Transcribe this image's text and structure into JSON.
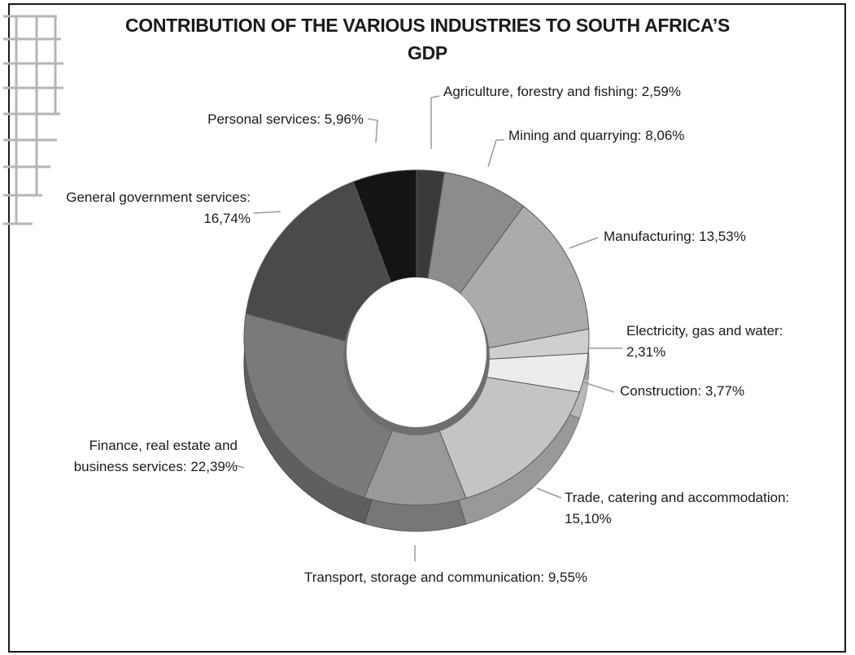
{
  "chart_data": {
    "type": "pie",
    "style": "3d-donut",
    "title_line1": "CONTRIBUTION OF THE VARIOUS INDUSTRIES TO SOUTH AFRICA’S",
    "title_line2": "GDP",
    "unit": "%",
    "slices": [
      {
        "label_lines": [
          "Agriculture, forestry and fishing: 2,59%"
        ],
        "value": 2.59,
        "color": "#3a3a3a"
      },
      {
        "label_lines": [
          "Mining and quarrying: 8,06%"
        ],
        "value": 8.06,
        "color": "#8c8c8c"
      },
      {
        "label_lines": [
          "Manufacturing: 13,53%"
        ],
        "value": 13.53,
        "color": "#ababab"
      },
      {
        "label_lines": [
          "Electricity, gas and water:",
          "2,31%"
        ],
        "value": 2.31,
        "color": "#cfcfcf"
      },
      {
        "label_lines": [
          "Construction: 3,77%"
        ],
        "value": 3.77,
        "color": "#ececec"
      },
      {
        "label_lines": [
          "Trade, catering and accommodation:",
          "15,10%"
        ],
        "value": 15.1,
        "color": "#c4c4c4"
      },
      {
        "label_lines": [
          "Transport, storage and communication: 9,55%"
        ],
        "value": 9.55,
        "color": "#999999"
      },
      {
        "label_lines": [
          "Finance, real estate and",
          "business services: 22,39%"
        ],
        "value": 22.39,
        "color": "#7a7a7a"
      },
      {
        "label_lines": [
          "General government services:",
          "16,74%"
        ],
        "value": 16.74,
        "color": "#4a4a4a"
      },
      {
        "label_lines": [
          "Personal services: 5,96%"
        ],
        "value": 5.96,
        "color": "#141414"
      }
    ]
  }
}
